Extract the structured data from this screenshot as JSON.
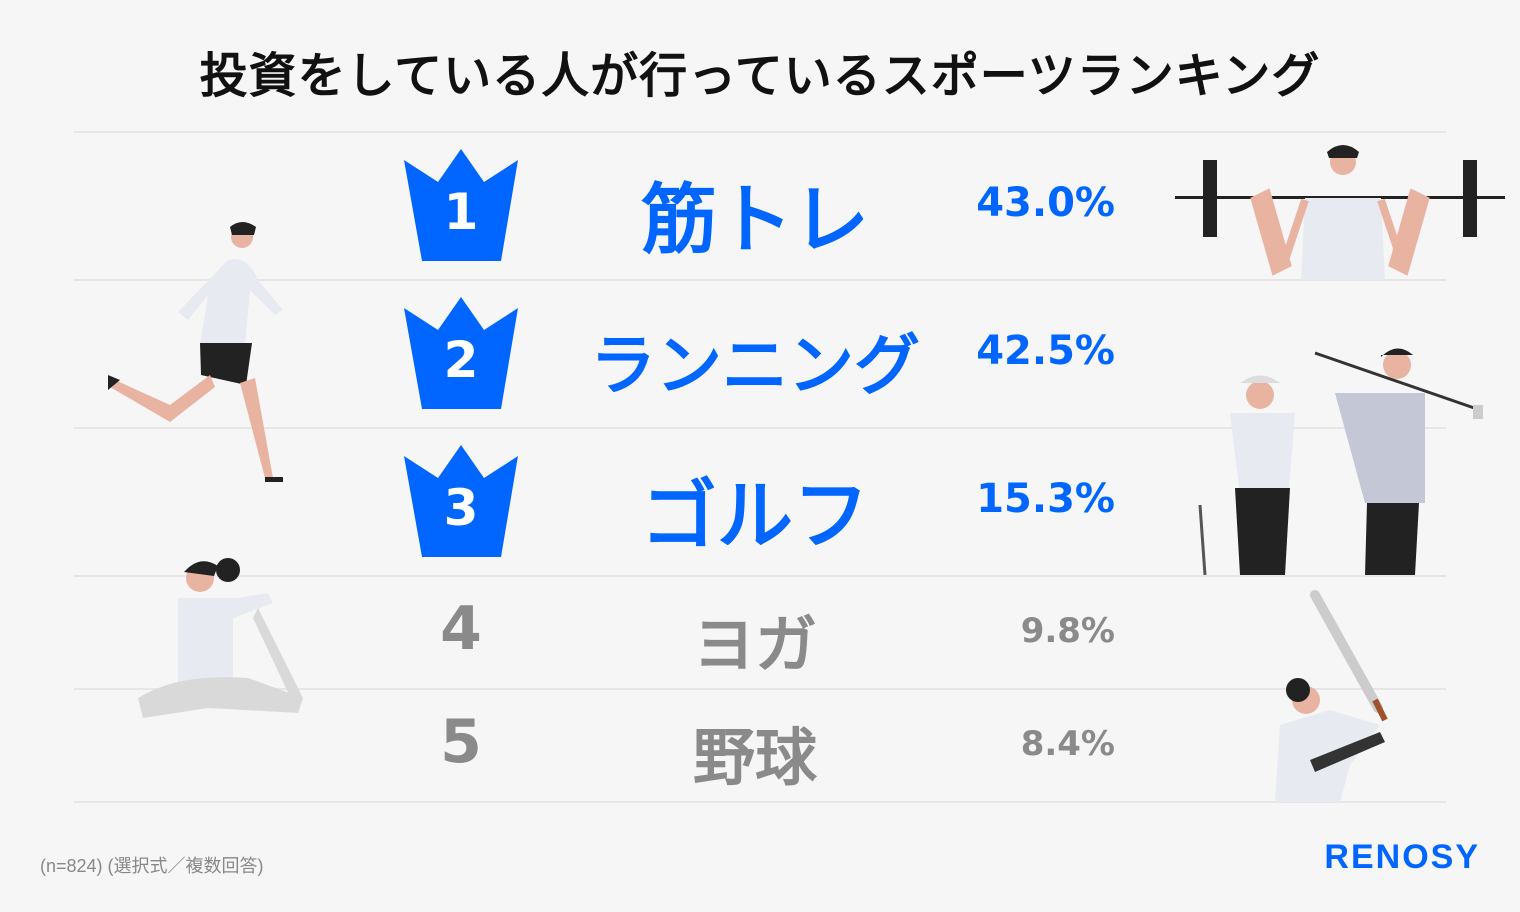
{
  "title": "投資をしている人が行っているスポーツランキング",
  "colors": {
    "accent": "#0066ff",
    "muted": "#8a8a8a",
    "background": "#f6f6f6"
  },
  "chart_data": {
    "type": "table",
    "title": "投資をしている人が行っているスポーツランキング",
    "ranks": [
      "1",
      "2",
      "3",
      "4",
      "5"
    ],
    "categories": [
      "筋トレ",
      "ランニング",
      "ゴルフ",
      "ヨガ",
      "野球"
    ],
    "labels": [
      "43.0%",
      "42.5%",
      "15.3%",
      "9.8%",
      "8.4%"
    ],
    "values": [
      43.0,
      42.5,
      15.3,
      9.8,
      8.4
    ],
    "unit": "%",
    "top3_icon": "crown-icon"
  },
  "footnote": "(n=824) (選択式／複数回答)",
  "logo": "RENOSY"
}
